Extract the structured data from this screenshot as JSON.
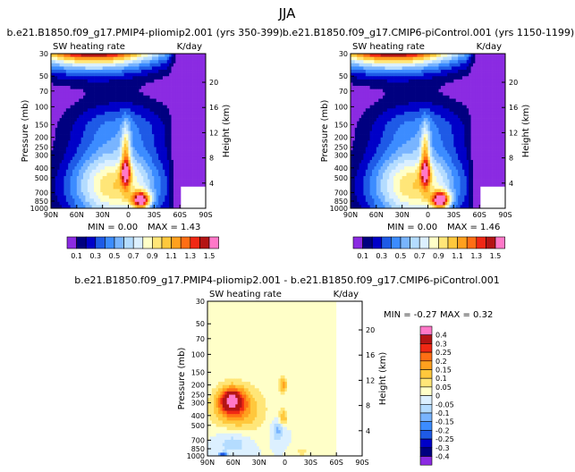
{
  "suptitle": "JJA",
  "chart_data": [
    {
      "type": "heatmap",
      "title": "b.e21.B1850.f09_g17.PMIP4-pliomip2.001 (yrs 350-399)",
      "subtitle_left": "SW heating rate",
      "subtitle_right": "K/day",
      "xlabel": "",
      "ylabel": "Pressure (mb)",
      "y2label": "Height (km)",
      "x_ticks": [
        "90N",
        "60N",
        "30N",
        "0",
        "30S",
        "60S",
        "90S"
      ],
      "y_ticks": [
        "30",
        "50",
        "70",
        "100",
        "150",
        "200",
        "250",
        "300",
        "400",
        "500",
        "700",
        "850",
        "1000"
      ],
      "y2_ticks": [
        "20",
        "16",
        "12",
        "8",
        "4"
      ],
      "min_label": "MIN = 0.00",
      "max_label": "MAX = 1.43",
      "min": 0.0,
      "max": 1.43,
      "colorbar": [
        "0.1",
        "0.3",
        "0.5",
        "0.7",
        "0.9",
        "1.1",
        "1.3",
        "1.5"
      ],
      "levels": [
        0.1,
        0.2,
        0.3,
        0.4,
        0.5,
        0.6,
        0.7,
        0.8,
        0.9,
        1.0,
        1.1,
        1.2,
        1.3,
        1.4,
        1.5
      ]
    },
    {
      "type": "heatmap",
      "title": "b.e21.B1850.f09_g17.CMIP6-piControl.001 (yrs 1150-1199)",
      "subtitle_left": "SW heating rate",
      "subtitle_right": "K/day",
      "xlabel": "",
      "ylabel": "Pressure (mb)",
      "y2label": "Height (km)",
      "x_ticks": [
        "90N",
        "60N",
        "30N",
        "0",
        "30S",
        "60S",
        "90S"
      ],
      "y_ticks": [
        "30",
        "50",
        "70",
        "100",
        "150",
        "200",
        "250",
        "300",
        "400",
        "500",
        "700",
        "850",
        "1000"
      ],
      "y2_ticks": [
        "20",
        "16",
        "12",
        "8",
        "4"
      ],
      "min_label": "MIN = 0.00",
      "max_label": "MAX = 1.46",
      "min": 0.0,
      "max": 1.46,
      "colorbar": [
        "0.1",
        "0.3",
        "0.5",
        "0.7",
        "0.9",
        "1.1",
        "1.3",
        "1.5"
      ],
      "levels": [
        0.1,
        0.2,
        0.3,
        0.4,
        0.5,
        0.6,
        0.7,
        0.8,
        0.9,
        1.0,
        1.1,
        1.2,
        1.3,
        1.4,
        1.5
      ]
    },
    {
      "type": "heatmap",
      "title": "b.e21.B1850.f09_g17.PMIP4-pliomip2.001 - b.e21.B1850.f09_g17.CMIP6-piControl.001",
      "subtitle_left": "SW heating rate",
      "subtitle_right": "K/day",
      "xlabel": "",
      "ylabel": "Pressure (mb)",
      "y2label": "Height (km)",
      "x_ticks": [
        "90N",
        "60N",
        "30N",
        "0",
        "30S",
        "60S",
        "90S"
      ],
      "y_ticks": [
        "30",
        "50",
        "70",
        "100",
        "150",
        "200",
        "250",
        "300",
        "400",
        "500",
        "700",
        "850",
        "1000"
      ],
      "y2_ticks": [
        "20",
        "16",
        "12",
        "8",
        "4"
      ],
      "min_label": "MIN = -0.27",
      "max_label": "MAX = 0.32",
      "min": -0.27,
      "max": 0.32,
      "colorbar": [
        "0.4",
        "0.3",
        "0.25",
        "0.2",
        "0.15",
        "0.1",
        "0.05",
        "0",
        "-0.05",
        "-0.1",
        "-0.15",
        "-0.2",
        "-0.25",
        "-0.3",
        "-0.4"
      ],
      "levels": [
        -0.4,
        -0.3,
        -0.25,
        -0.2,
        -0.15,
        -0.1,
        -0.05,
        0,
        0.05,
        0.1,
        0.15,
        0.2,
        0.25,
        0.3,
        0.4
      ]
    }
  ],
  "colors": {
    "abs": [
      "#8B2BE2",
      "#000080",
      "#0000C8",
      "#1E5AE6",
      "#3C8CFF",
      "#78B4FF",
      "#B4DCFF",
      "#DCF0FF",
      "#FFFFC8",
      "#FFE678",
      "#FFC83C",
      "#FFA01E",
      "#FF6E14",
      "#F02814",
      "#B41414",
      "#FF78C8"
    ],
    "diff": [
      "#8B2BE2",
      "#000080",
      "#0000C8",
      "#1E5AE6",
      "#3C8CFF",
      "#78B4FF",
      "#B4DCFF",
      "#DCF0FF",
      "#FFFFC8",
      "#FFE678",
      "#FFC83C",
      "#FFA01E",
      "#FF6E14",
      "#F02814",
      "#B41414",
      "#FF78C8"
    ]
  }
}
